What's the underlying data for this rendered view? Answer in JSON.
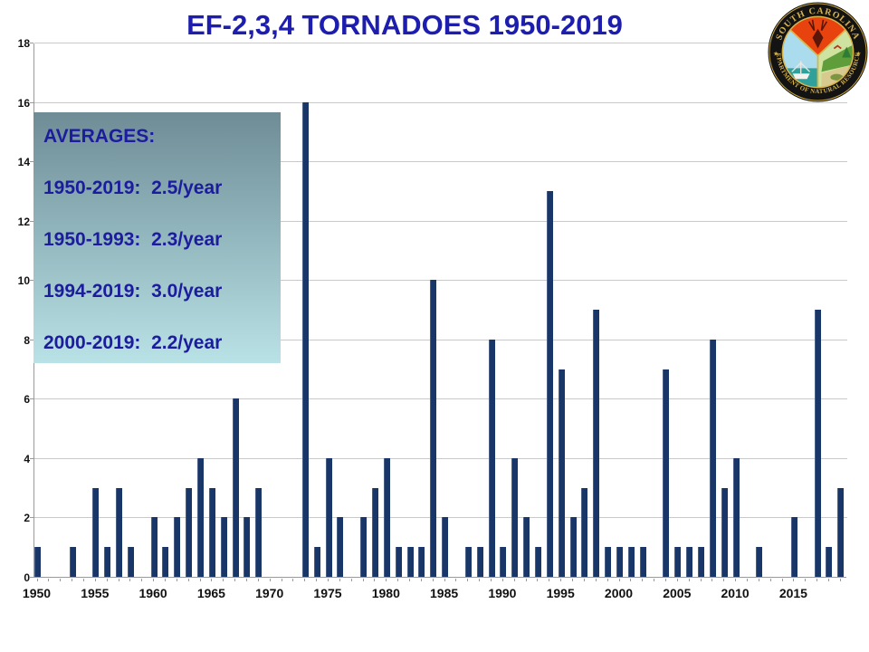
{
  "slide": {
    "title": "EF-2,3,4 TORNADOES 1950-2019"
  },
  "logo": {
    "name": "South Carolina Department of Natural Resources seal",
    "arc_text_top": "SOUTH CAROLINA",
    "arc_text_bottom": "DEPARTMENT OF NATURAL RESOURCES"
  },
  "averages": {
    "heading": "AVERAGES:",
    "lines": [
      "1950-2019:  2.5/year",
      "1950-1993:  2.3/year",
      "1994-2019:  3.0/year",
      "2000-2019:  2.2/year"
    ]
  },
  "chart_data": {
    "type": "bar",
    "title": "EF-2,3,4 TORNADOES 1950-2019",
    "xlabel": "",
    "ylabel": "",
    "ylim": [
      0,
      18
    ],
    "ytick_interval": 2,
    "grid": true,
    "bar_color": "#183668",
    "gridline_color": "#c9c9c9",
    "xtick_labels": [
      "1950",
      "1955",
      "1960",
      "1965",
      "1970",
      "1975",
      "1980",
      "1985",
      "1990",
      "1995",
      "2000",
      "2005",
      "2010",
      "2015"
    ],
    "categories": [
      1950,
      1951,
      1952,
      1953,
      1954,
      1955,
      1956,
      1957,
      1958,
      1959,
      1960,
      1961,
      1962,
      1963,
      1964,
      1965,
      1966,
      1967,
      1968,
      1969,
      1970,
      1971,
      1972,
      1973,
      1974,
      1975,
      1976,
      1977,
      1978,
      1979,
      1980,
      1981,
      1982,
      1983,
      1984,
      1985,
      1986,
      1987,
      1988,
      1989,
      1990,
      1991,
      1992,
      1993,
      1994,
      1995,
      1996,
      1997,
      1998,
      1999,
      2000,
      2001,
      2002,
      2003,
      2004,
      2005,
      2006,
      2007,
      2008,
      2009,
      2010,
      2011,
      2012,
      2013,
      2014,
      2015,
      2016,
      2017,
      2018,
      2019
    ],
    "values": [
      1,
      0,
      0,
      1,
      0,
      3,
      1,
      3,
      1,
      0,
      2,
      1,
      2,
      3,
      4,
      3,
      2,
      6,
      2,
      3,
      0,
      0,
      0,
      16,
      1,
      4,
      2,
      0,
      2,
      3,
      4,
      1,
      1,
      1,
      10,
      2,
      0,
      1,
      1,
      8,
      1,
      4,
      2,
      1,
      13,
      7,
      2,
      3,
      9,
      1,
      1,
      1,
      1,
      0,
      7,
      1,
      1,
      1,
      8,
      3,
      4,
      0,
      1,
      0,
      0,
      2,
      0,
      9,
      1,
      3
    ]
  }
}
